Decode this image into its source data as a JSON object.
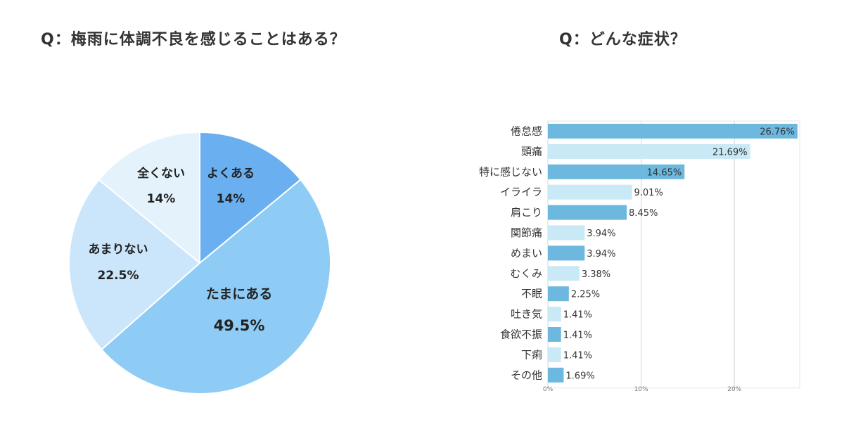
{
  "colors": {
    "pie": [
      "#6aaff0",
      "#8ecbf5",
      "#cbe6fb",
      "#e4f2fc"
    ],
    "bar_dark": "#6cb8df",
    "bar_light": "#c9e9f6",
    "grid": "#d5d5d5"
  },
  "chart_data": [
    {
      "type": "pie",
      "title": "Q：梅雨に体調不良を感じることはある？",
      "slices": [
        {
          "label": "よくある",
          "value": 14,
          "value_label": "14%"
        },
        {
          "label": "たまにある",
          "value": 49.5,
          "value_label": "49.5%"
        },
        {
          "label": "あまりない",
          "value": 22.5,
          "value_label": "22.5%"
        },
        {
          "label": "全くない",
          "value": 14,
          "value_label": "14%"
        }
      ]
    },
    {
      "type": "bar",
      "orientation": "horizontal",
      "title": "Q：どんな症状？",
      "categories": [
        "倦怠感",
        "頭痛",
        "特に感じない",
        "イライラ",
        "肩こり",
        "関節痛",
        "めまい",
        "むくみ",
        "不眠",
        "吐き気",
        "食欲不振",
        "下痢",
        "その他"
      ],
      "values": [
        26.76,
        21.69,
        14.65,
        9.01,
        8.45,
        3.94,
        3.94,
        3.38,
        2.25,
        1.41,
        1.41,
        1.41,
        1.69
      ],
      "value_labels": [
        "26.76%",
        "21.69%",
        "14.65%",
        "9.01%",
        "8.45%",
        "3.94%",
        "3.94%",
        "3.38%",
        "2.25%",
        "1.41%",
        "1.41%",
        "1.41%",
        "1.69%"
      ],
      "xlim": [
        0,
        27
      ],
      "xticks": [
        0,
        10,
        20
      ],
      "xtick_labels": [
        "0%",
        "10%",
        "20%"
      ],
      "grid": true
    }
  ]
}
